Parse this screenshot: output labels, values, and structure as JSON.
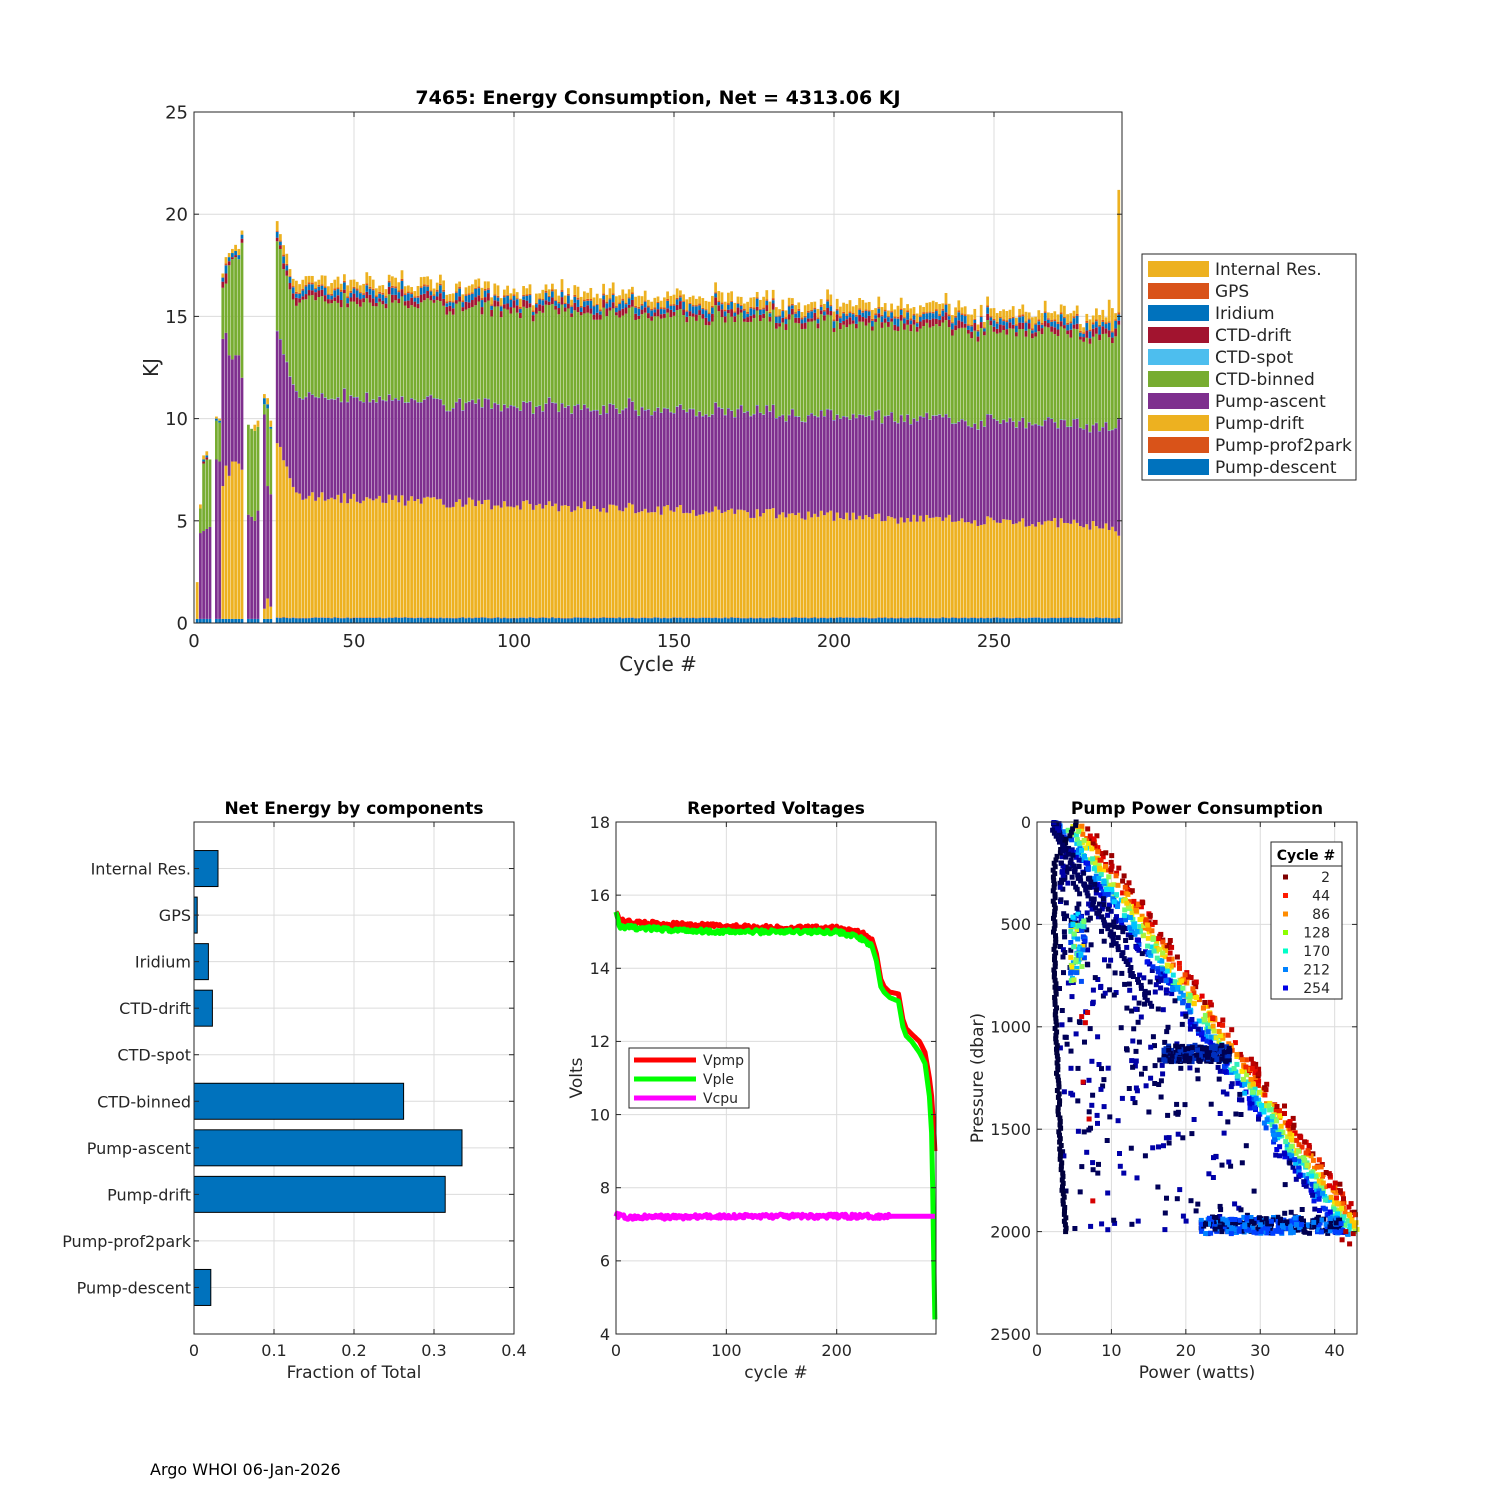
{
  "footer": "Argo WHOI 06-Jan-2026",
  "colors": {
    "internal": "#EDB120",
    "gps": "#D95319",
    "iridium": "#0072BD",
    "ctd_drift": "#A2142F",
    "ctd_spot": "#4DBEEE",
    "ctd_binned": "#77AC30",
    "pump_ascent": "#7E2F8E",
    "pump_drift": "#EDB120",
    "pump_prof2park": "#D95319",
    "pump_descent": "#0072BD",
    "hbar": "#0072BD",
    "vpmp": "#FF0000",
    "vple": "#00FF00",
    "vcpu": "#FF00FF"
  },
  "chart_data": [
    {
      "id": "energy",
      "type": "bar",
      "stacked": true,
      "title": "7465: Energy Consumption,  Net = 4313.06 KJ",
      "xlabel": "Cycle #",
      "ylabel": "KJ",
      "xlim": [
        0,
        290
      ],
      "ylim": [
        0,
        25
      ],
      "xticks": [
        0,
        50,
        100,
        150,
        200,
        250
      ],
      "yticks": [
        0,
        5,
        10,
        15,
        20,
        25
      ],
      "grid": true,
      "legend_position": "right",
      "legend": [
        "Internal Res.",
        "GPS",
        "Iridium",
        "CTD-drift",
        "CTD-spot",
        "CTD-binned",
        "Pump-ascent",
        "Pump-drift",
        "Pump-prof2park",
        "Pump-descent"
      ],
      "n_cycles": 289,
      "approx_levels": {
        "pump_descent": 0.3,
        "pump_drift_top_cycle_50": 6.0,
        "pump_ascent_top_cycle_50": 10.8,
        "ctd_binned_top_cycle_50": 15.5,
        "total_cycle_50": 16.3,
        "total_last_cycle": 21.1
      }
    },
    {
      "id": "components",
      "type": "bar",
      "orientation": "horizontal",
      "title": "Net Energy by components",
      "xlabel": "Fraction of Total",
      "xlim": [
        0,
        0.4
      ],
      "xticks": [
        0,
        0.1,
        0.2,
        0.3,
        0.4
      ],
      "xtick_labels": [
        "0",
        "0.1",
        "0.2",
        "0.3",
        "0.4"
      ],
      "categories": [
        "Internal Res.",
        "GPS",
        "Iridium",
        "CTD-drift",
        "CTD-spot",
        "CTD-binned",
        "Pump-ascent",
        "Pump-drift",
        "Pump-prof2park",
        "Pump-descent"
      ],
      "values": [
        0.03,
        0.004,
        0.018,
        0.023,
        0.0,
        0.262,
        0.335,
        0.314,
        0.0,
        0.021
      ]
    },
    {
      "id": "voltages",
      "type": "line",
      "title": "Reported Voltages",
      "xlabel": "cycle #",
      "ylabel": "Volts",
      "xlim": [
        0,
        290
      ],
      "ylim": [
        4,
        18
      ],
      "xticks": [
        0,
        100,
        200
      ],
      "yticks": [
        4,
        6,
        8,
        10,
        12,
        14,
        16,
        18
      ],
      "legend_position": "middle-left",
      "series": [
        {
          "name": "Vpmp",
          "x": [
            0,
            3,
            20,
            50,
            100,
            150,
            200,
            220,
            232,
            236,
            240,
            243,
            248,
            256,
            260,
            263,
            268,
            275,
            280,
            284,
            286,
            288,
            289
          ],
          "y": [
            15.6,
            15.3,
            15.25,
            15.2,
            15.15,
            15.1,
            15.1,
            15.0,
            14.8,
            14.4,
            13.7,
            13.5,
            13.35,
            13.3,
            12.6,
            12.35,
            12.2,
            12.0,
            11.7,
            11.0,
            10.5,
            9.6,
            9.0
          ]
        },
        {
          "name": "Vple",
          "x": [
            0,
            3,
            20,
            50,
            100,
            150,
            200,
            220,
            232,
            236,
            240,
            243,
            248,
            256,
            260,
            263,
            268,
            275,
            280,
            284,
            286,
            287,
            288,
            289
          ],
          "y": [
            15.5,
            15.15,
            15.1,
            15.05,
            15.0,
            15.0,
            15.0,
            14.85,
            14.6,
            14.2,
            13.5,
            13.35,
            13.2,
            13.1,
            12.4,
            12.15,
            12.0,
            11.7,
            11.4,
            10.5,
            9.5,
            8.0,
            6.0,
            4.4
          ]
        },
        {
          "name": "Vcpu",
          "x": [
            0,
            10,
            30,
            60,
            100,
            150,
            200,
            250,
            289
          ],
          "y": [
            7.25,
            7.18,
            7.2,
            7.2,
            7.22,
            7.22,
            7.22,
            7.22,
            7.22
          ]
        }
      ]
    },
    {
      "id": "pump_power",
      "type": "scatter",
      "title": "Pump Power Consumption",
      "xlabel": "Power (watts)",
      "ylabel": "Pressure (dbar)",
      "xlim": [
        0,
        43
      ],
      "ylim": [
        0,
        2500
      ],
      "y_reversed": true,
      "xticks": [
        0,
        10,
        20,
        30,
        40
      ],
      "yticks": [
        0,
        500,
        1000,
        1500,
        2000,
        2500
      ],
      "legend_title": "Cycle #",
      "legend_position": "top-right",
      "legend": [
        "2",
        "44",
        "86",
        "128",
        "170",
        "212",
        "254"
      ],
      "legend_colors": [
        "#7f0000",
        "#ff1a00",
        "#ff8c00",
        "#8cff00",
        "#00ffc8",
        "#0082ff",
        "#0000e6"
      ]
    }
  ]
}
